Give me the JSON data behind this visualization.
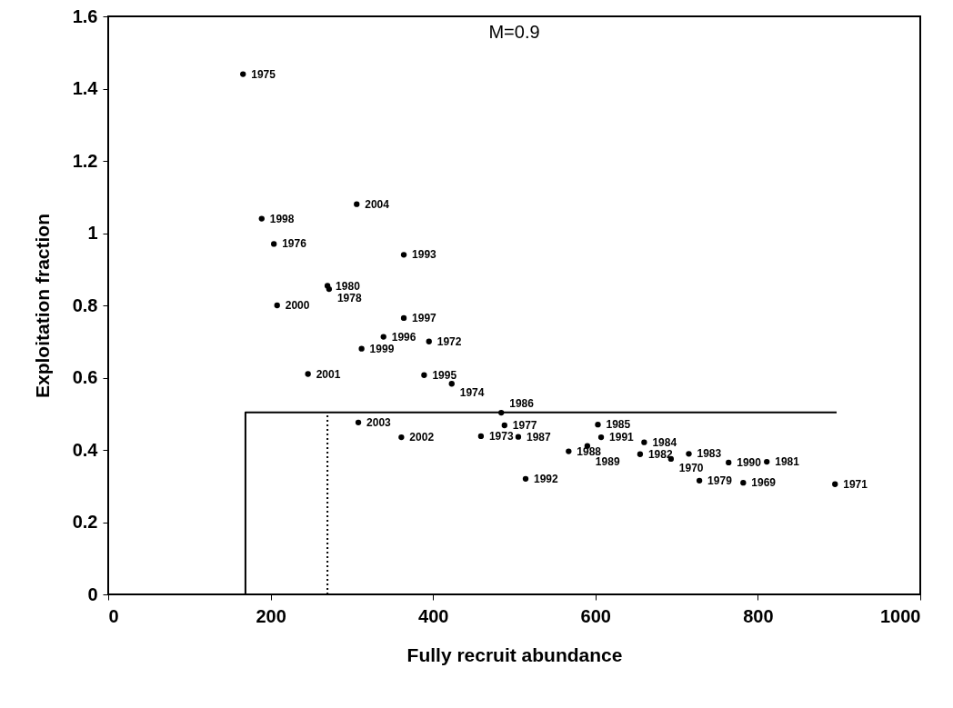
{
  "chart_data": {
    "type": "scatter",
    "xlabel": "Fully recruit abundance",
    "ylabel": "Exploitation fraction",
    "annotations": [
      "M=0.9",
      {
        "text": "1975",
        "x": 166,
        "y": 1.44
      },
      {
        "text": "1998",
        "x": 189,
        "y": 1.04
      },
      {
        "text": "1976",
        "x": 204,
        "y": 0.97
      },
      {
        "text": "2004",
        "x": 306,
        "y": 1.08
      },
      {
        "text": "1993",
        "x": 364,
        "y": 0.94
      },
      {
        "text": "1980",
        "x": 270,
        "y": 0.854
      },
      {
        "text": "1978",
        "x": 272,
        "y": 0.845
      },
      {
        "text": "2000",
        "x": 208,
        "y": 0.8
      },
      {
        "text": "1997",
        "x": 364,
        "y": 0.765
      },
      {
        "text": "1996",
        "x": 339,
        "y": 0.713
      },
      {
        "text": "1972",
        "x": 395,
        "y": 0.7
      },
      {
        "text": "1999",
        "x": 312,
        "y": 0.68
      },
      {
        "text": "2001",
        "x": 246,
        "y": 0.61
      },
      {
        "text": "1995",
        "x": 389,
        "y": 0.607
      },
      {
        "text": "1974",
        "x": 423,
        "y": 0.583
      },
      {
        "text": "2003",
        "x": 308,
        "y": 0.476
      },
      {
        "text": "2002",
        "x": 361,
        "y": 0.435
      },
      {
        "text": "1986",
        "x": 484,
        "y": 0.503
      },
      {
        "text": "1977",
        "x": 488,
        "y": 0.468
      },
      {
        "text": "1973",
        "x": 459,
        "y": 0.438
      },
      {
        "text": "1987",
        "x": 505,
        "y": 0.436
      },
      {
        "text": "1992",
        "x": 514,
        "y": 0.32
      },
      {
        "text": "1988",
        "x": 567,
        "y": 0.396
      },
      {
        "text": "1985",
        "x": 603,
        "y": 0.47
      },
      {
        "text": "1991",
        "x": 607,
        "y": 0.435
      },
      {
        "text": "1989",
        "x": 590,
        "y": 0.411
      },
      {
        "text": "1984",
        "x": 660,
        "y": 0.421
      },
      {
        "text": "1982",
        "x": 655,
        "y": 0.388
      },
      {
        "text": "1970",
        "x": 693,
        "y": 0.375
      },
      {
        "text": "1983",
        "x": 715,
        "y": 0.389
      },
      {
        "text": "1990",
        "x": 764,
        "y": 0.365
      },
      {
        "text": "1981",
        "x": 811,
        "y": 0.367
      },
      {
        "text": "1979",
        "x": 728,
        "y": 0.315
      },
      {
        "text": "1969",
        "x": 782,
        "y": 0.309
      },
      {
        "text": "1971",
        "x": 895,
        "y": 0.305
      }
    ],
    "xlim": [
      0,
      1000
    ],
    "ylim": [
      0,
      1.6
    ],
    "xticks": [
      0,
      200,
      400,
      600,
      800,
      1000
    ],
    "yticks": [
      0,
      0.2,
      0.4,
      0.6,
      0.8,
      1,
      1.2,
      1.4,
      1.6
    ],
    "series": [
      {
        "color": "#000000",
        "marker": "circle",
        "x": [
          166,
          189,
          204,
          306,
          364,
          270,
          272,
          208,
          364,
          339,
          395,
          312,
          246,
          389,
          423,
          308,
          361,
          484,
          488,
          459,
          505,
          514,
          567,
          603,
          607,
          590,
          660,
          655,
          693,
          715,
          764,
          811,
          728,
          782,
          895
        ],
        "values": [
          1.44,
          1.04,
          0.97,
          1.08,
          0.94,
          0.854,
          0.845,
          0.8,
          0.765,
          0.713,
          0.7,
          0.68,
          0.61,
          0.607,
          0.583,
          0.476,
          0.435,
          0.503,
          0.468,
          0.438,
          0.436,
          0.32,
          0.396,
          0.47,
          0.435,
          0.411,
          0.421,
          0.388,
          0.375,
          0.389,
          0.365,
          0.367,
          0.315,
          0.309,
          0.305
        ]
      },
      {
        "type": "line",
        "color": "#000000",
        "line_style": "solid",
        "x": [
          169,
          169,
          897
        ],
        "values": [
          0,
          0.504,
          0.504
        ]
      },
      {
        "type": "line",
        "color": "#000000",
        "line_style": "dotted",
        "x": [
          270,
          270
        ],
        "values": [
          0,
          0.504
        ]
      }
    ]
  }
}
